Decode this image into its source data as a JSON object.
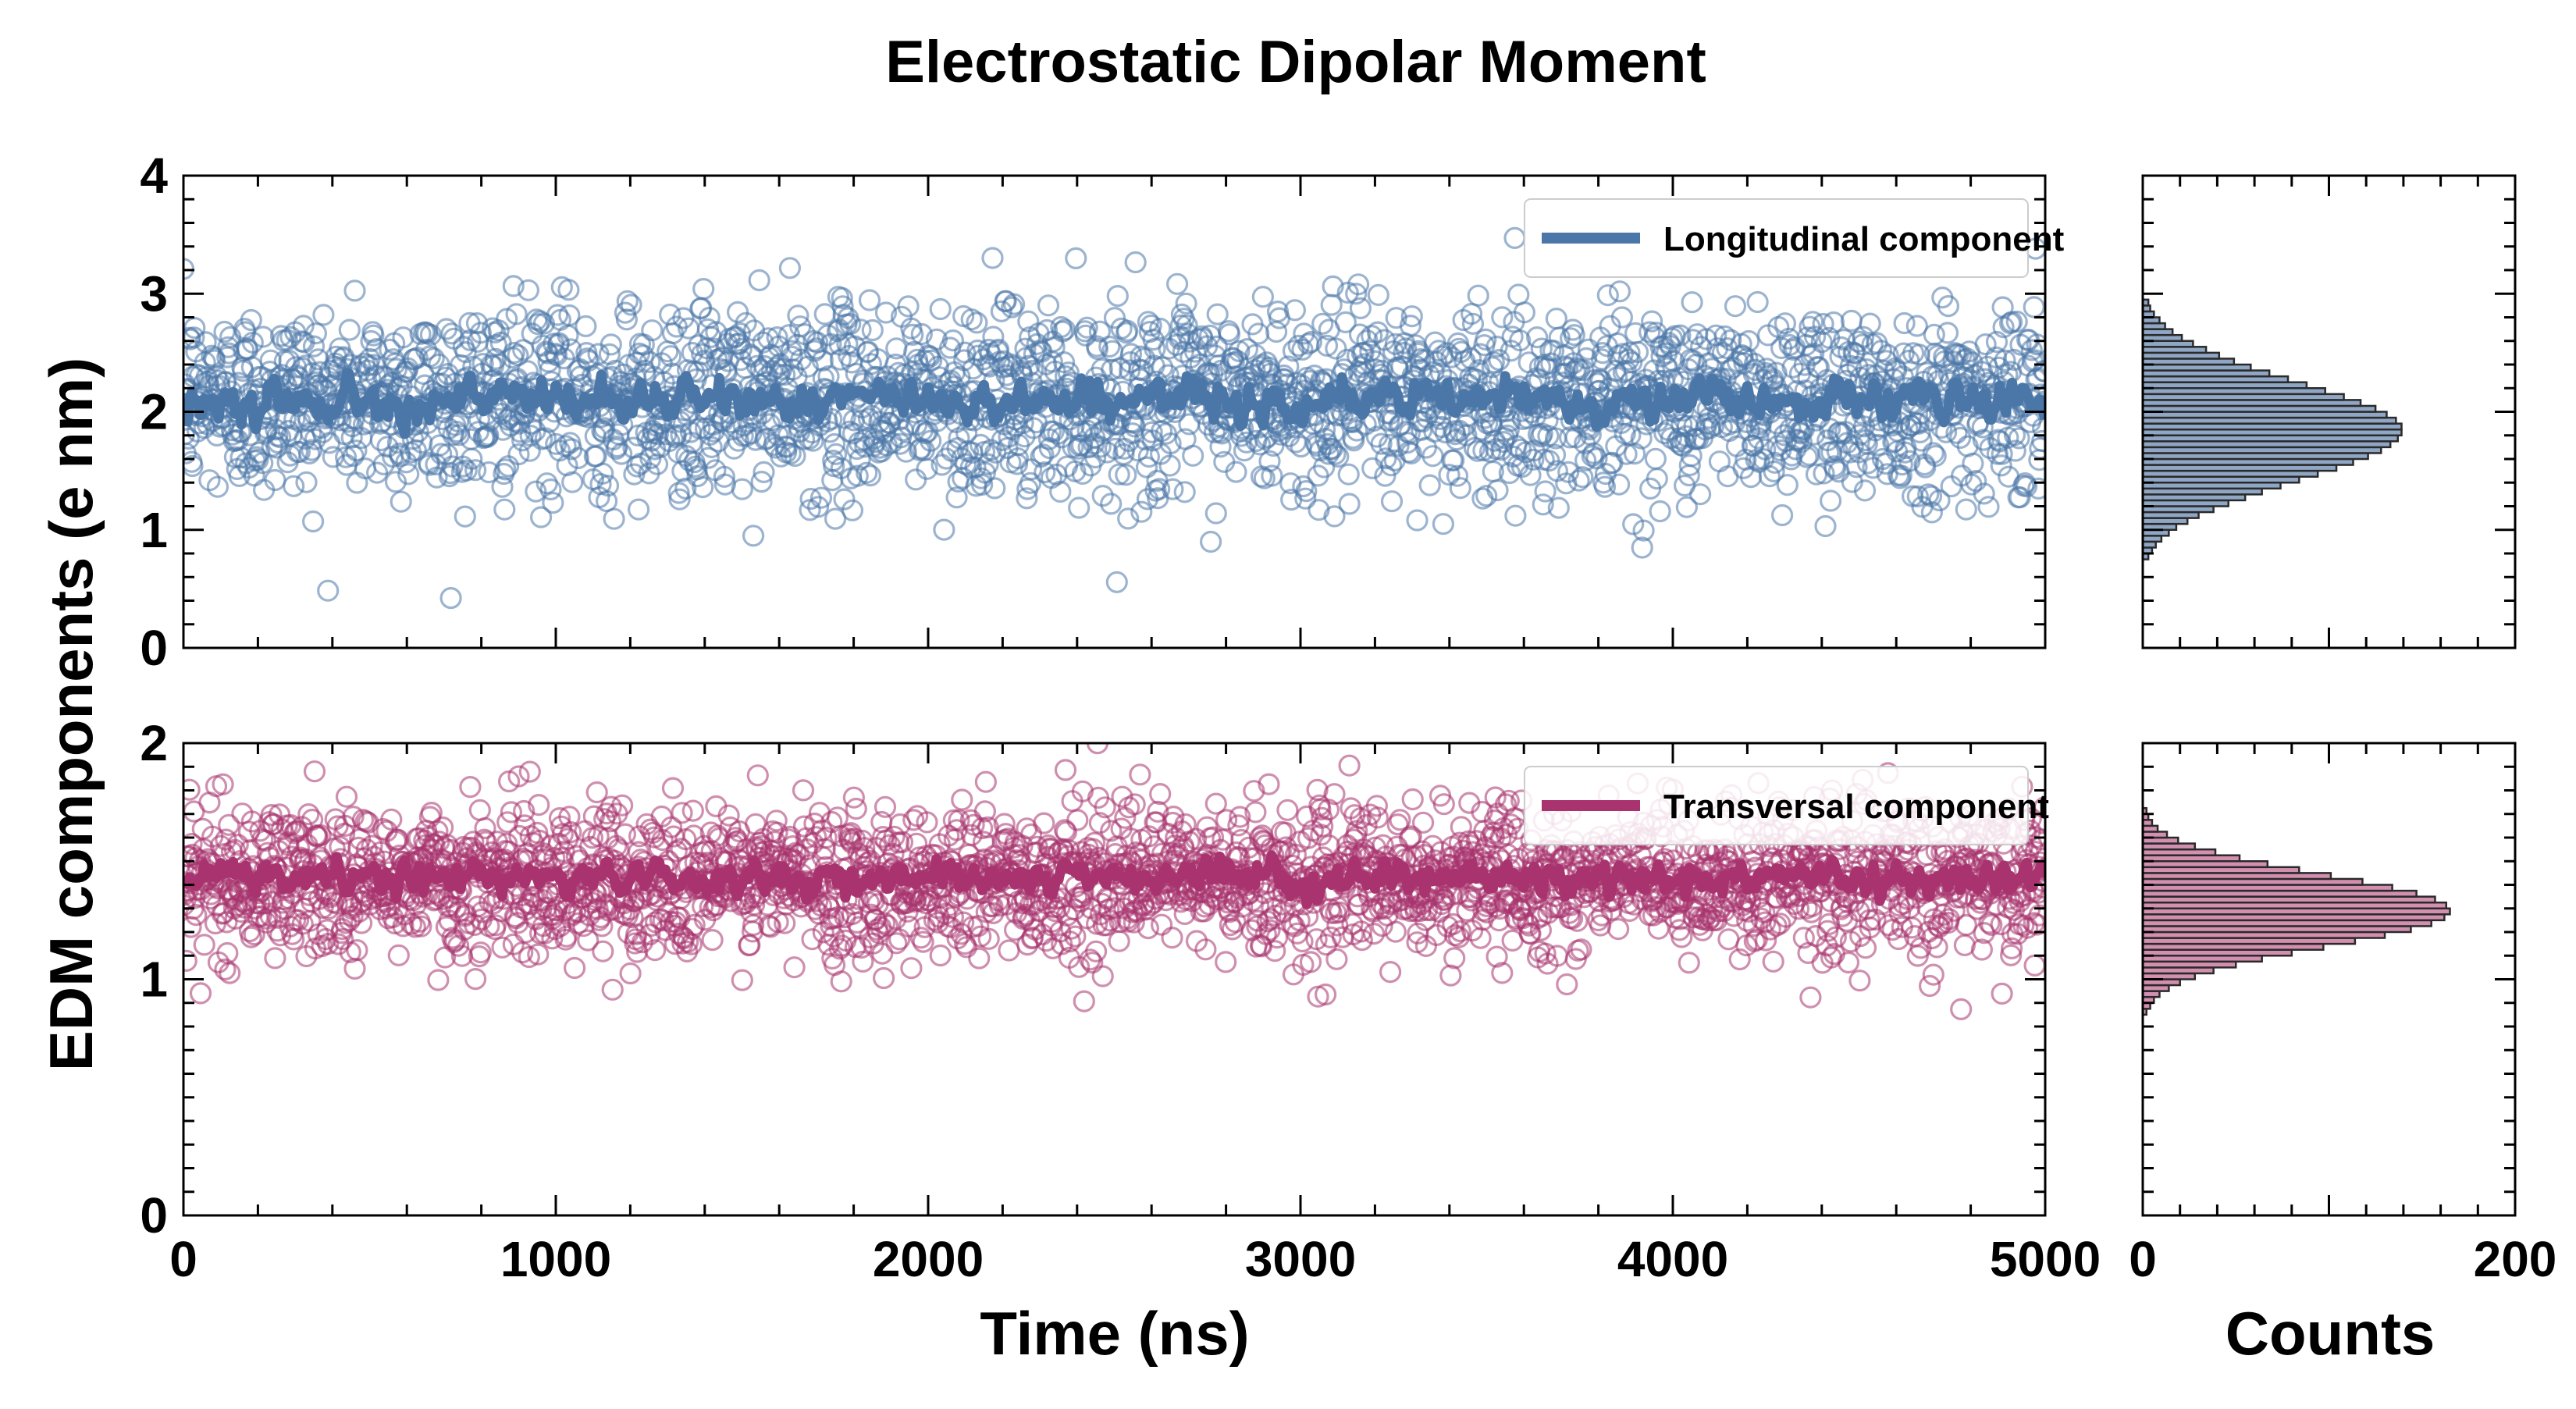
{
  "chart_data": {
    "type": "scatter",
    "title": "Electrostatic Dipolar Moment",
    "ylabel": "EDM components (e nm)",
    "xlabel": "Time (ns)",
    "hist_xlabel": "Counts",
    "colors": {
      "longitudinal": "#4a76a8",
      "transversal": "#a8336e"
    },
    "panels": [
      {
        "id": "longitudinal",
        "xlim": [
          0,
          5000
        ],
        "ylim": [
          0,
          4
        ],
        "xticks": [
          0,
          1000,
          2000,
          3000,
          4000,
          5000
        ],
        "yticks": [
          0,
          1,
          2,
          3,
          4
        ],
        "xtick_labels": [
          "0",
          "1000",
          "2000",
          "3000",
          "4000",
          "5000"
        ],
        "ytick_labels": [
          "0",
          "1",
          "2",
          "3",
          "4"
        ],
        "show_x_tick_labels": false,
        "legend_label": "Longitudinal component",
        "legend_position": "top-right",
        "series": [
          {
            "name": "Longitudinal component",
            "kind": "scatter-open-circles",
            "n_points": 2500,
            "mean": 2.1,
            "std": 0.4,
            "x_range": [
              0,
              5000
            ]
          },
          {
            "name": "Longitudinal component",
            "kind": "running-average-line",
            "mean": 2.1,
            "fluctuation": 0.15
          }
        ]
      },
      {
        "id": "transversal",
        "xlim": [
          0,
          5000
        ],
        "ylim": [
          0,
          2
        ],
        "xticks": [
          0,
          1000,
          2000,
          3000,
          4000,
          5000
        ],
        "yticks": [
          0,
          1,
          2
        ],
        "xtick_labels": [
          "0",
          "1000",
          "2000",
          "3000",
          "4000",
          "5000"
        ],
        "ytick_labels": [
          "0",
          "1",
          "2"
        ],
        "show_x_tick_labels": true,
        "legend_label": "Transversal component",
        "legend_position": "top-right",
        "series": [
          {
            "name": "Transversal component",
            "kind": "scatter-open-circles",
            "n_points": 2500,
            "mean": 1.42,
            "std": 0.16,
            "x_range": [
              0,
              5000
            ]
          },
          {
            "name": "Transversal component",
            "kind": "running-average-line",
            "mean": 1.43,
            "fluctuation": 0.06
          }
        ]
      }
    ],
    "histograms": [
      {
        "id": "longitudinal-hist",
        "xlim": [
          0,
          200
        ],
        "ylim": [
          0,
          4
        ],
        "bin_width": 0.05,
        "bins_from": 0.75,
        "counts": [
          3,
          5,
          7,
          10,
          14,
          18,
          24,
          30,
          38,
          46,
          55,
          64,
          74,
          84,
          94,
          104,
          113,
          121,
          128,
          133,
          137,
          139,
          139,
          136,
          131,
          125,
          117,
          108,
          98,
          88,
          78,
          68,
          58,
          49,
          41,
          34,
          27,
          21,
          16,
          12,
          9,
          6,
          4,
          3
        ]
      },
      {
        "id": "transversal-hist",
        "xlim": [
          0,
          200
        ],
        "ylim": [
          0,
          2
        ],
        "xticks": [
          0,
          200
        ],
        "xtick_labels": [
          "0",
          "200"
        ],
        "bin_width": 0.025,
        "bins_from": 0.85,
        "counts": [
          2,
          4,
          6,
          9,
          14,
          20,
          28,
          38,
          50,
          64,
          80,
          97,
          114,
          130,
          144,
          155,
          162,
          165,
          163,
          157,
          147,
          134,
          118,
          101,
          84,
          67,
          52,
          39,
          28,
          19,
          13,
          8,
          5,
          3,
          2
        ]
      }
    ]
  }
}
